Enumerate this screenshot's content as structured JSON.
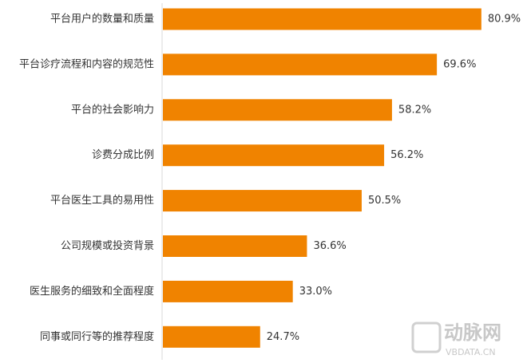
{
  "chart_data": {
    "type": "bar",
    "orientation": "horizontal",
    "categories": [
      "平台用户的数量和质量",
      "平台诊疗流程和内容的规范性",
      "平台的社会影响力",
      "诊费分成比例",
      "平台医生工具的易用性",
      "公司规模或投资背景",
      "医生服务的细致和全面程度",
      "同事或同行等的推荐程度"
    ],
    "values": [
      80.9,
      69.6,
      58.2,
      56.2,
      50.5,
      36.6,
      33.0,
      24.7
    ],
    "value_labels": [
      "80.9%",
      "69.6%",
      "58.2%",
      "56.2%",
      "50.5%",
      "36.6%",
      "33.0%",
      "24.7%"
    ],
    "color": "#f08300"
  },
  "watermark": {
    "name": "动脉网",
    "site": "VBDATA.CN"
  }
}
